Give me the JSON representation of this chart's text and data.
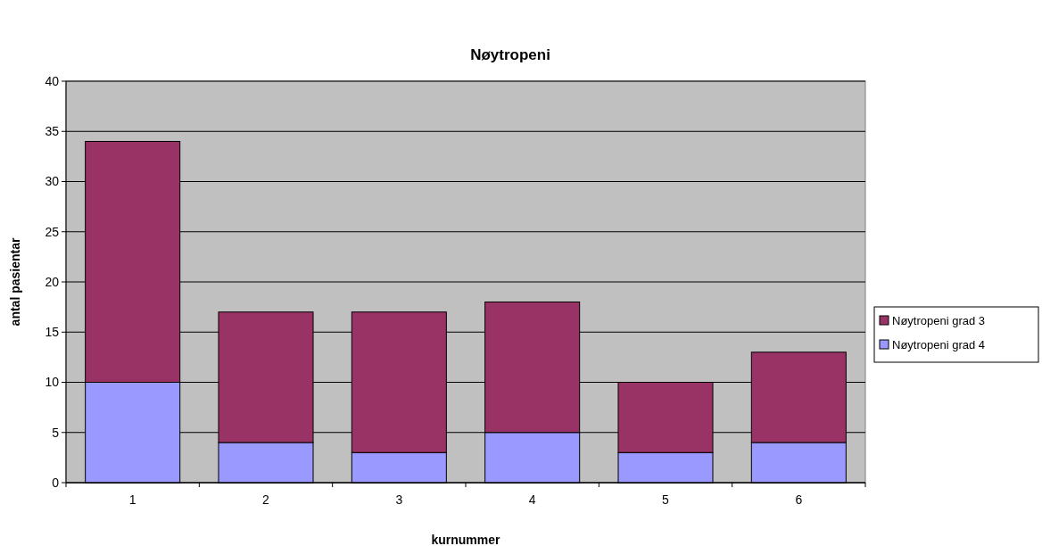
{
  "chart_data": {
    "type": "bar",
    "title": "Nøytropeni",
    "xlabel": "kurnummer",
    "ylabel": "antal pasientar",
    "categories": [
      "1",
      "2",
      "3",
      "4",
      "5",
      "6"
    ],
    "stacked": true,
    "series": [
      {
        "name": "Nøytropeni grad 4",
        "color": "#9999ff",
        "values": [
          10,
          4,
          3,
          5,
          3,
          4
        ]
      },
      {
        "name": "Nøytropeni grad 3",
        "color": "#993366",
        "values": [
          24,
          13,
          14,
          13,
          7,
          9
        ]
      }
    ],
    "ylim": [
      0,
      40
    ],
    "yticks": [
      0,
      5,
      10,
      15,
      20,
      25,
      30,
      35,
      40
    ],
    "grid": "y",
    "legend": "right"
  }
}
